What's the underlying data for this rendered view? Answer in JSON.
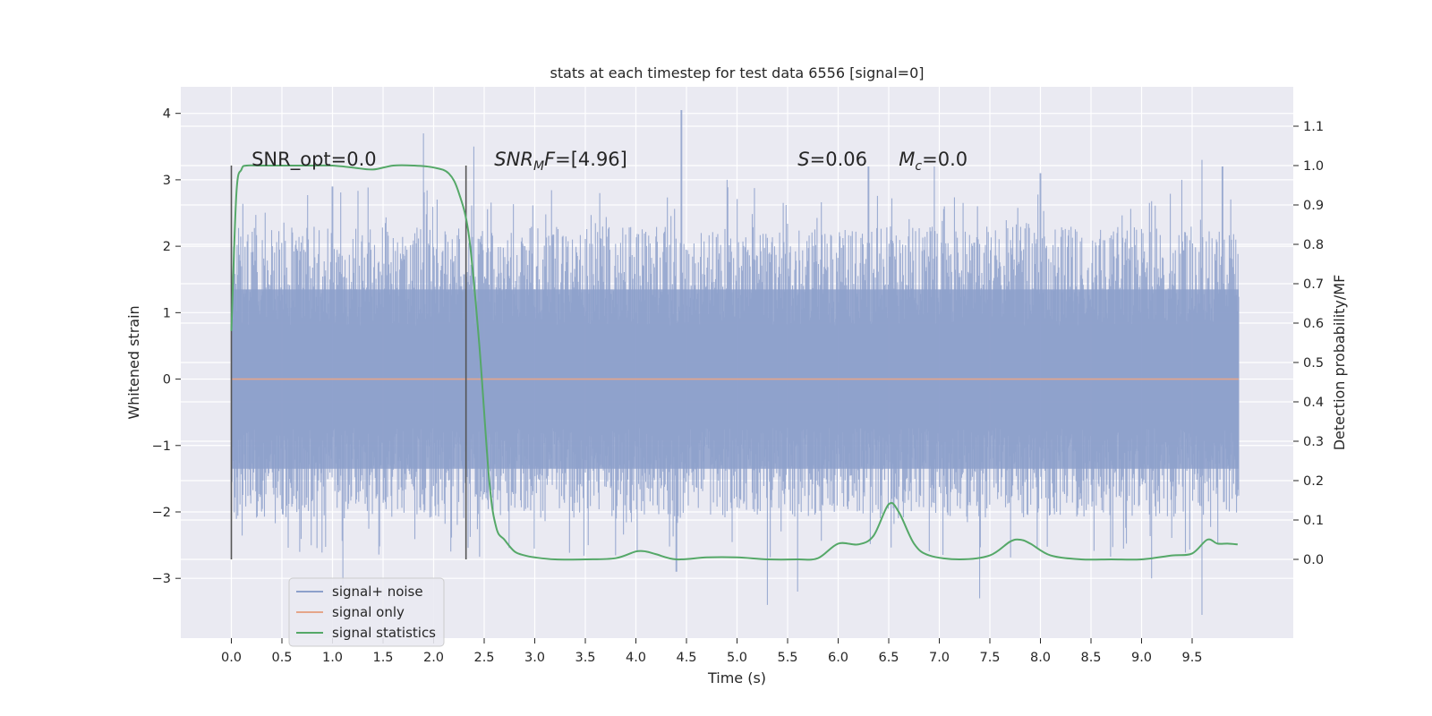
{
  "chart_data": {
    "type": "line",
    "title": "stats at each timestep for test data 6556 [signal=0]",
    "xlabel": "Time (s)",
    "ylabel": "Whitened strain",
    "y2label": "Detection probability/MF",
    "xlim": [
      -0.5,
      10.5
    ],
    "ylim": [
      -3.9,
      4.4
    ],
    "y2lim": [
      -0.2,
      1.2
    ],
    "x_ticks": [
      "0.0",
      "0.5",
      "1.0",
      "1.5",
      "2.0",
      "2.5",
      "3.0",
      "3.5",
      "4.0",
      "4.5",
      "5.0",
      "5.5",
      "6.0",
      "6.5",
      "7.0",
      "7.5",
      "8.0",
      "8.5",
      "9.0",
      "9.5"
    ],
    "y_ticks": [
      "−3",
      "−2",
      "−1",
      "0",
      "1",
      "2",
      "3",
      "4"
    ],
    "y2_ticks": [
      "0.0",
      "0.1",
      "0.2",
      "0.3",
      "0.4",
      "0.5",
      "0.6",
      "0.7",
      "0.8",
      "0.9",
      "1.0",
      "1.1"
    ],
    "grid": true,
    "legend_position": "lower-left",
    "annotations": {
      "snr_opt": "SNR_opt=0.0",
      "snr_mf_base": "SNR",
      "snr_mf_sub": "M",
      "snr_mf_tail": "F",
      "snr_mf_value": "=[4.96]",
      "s_label": "S",
      "s_value": "=0.06",
      "mc_label": "M",
      "mc_sub": "c",
      "mc_value": "=0.0"
    },
    "vertical_lines_x": [
      0.0,
      2.32
    ],
    "series": [
      {
        "name": "signal+ noise",
        "color": "#8da0cb",
        "axis": "left",
        "x_range": [
          0.0,
          9.96
        ],
        "envelope": {
          "upper_typical": 2.3,
          "lower_typical": -2.1,
          "peaks": [
            [
              1.0,
              2.9
            ],
            [
              1.9,
              3.7
            ],
            [
              2.4,
              3.5
            ],
            [
              4.45,
              4.05
            ],
            [
              4.9,
              3.0
            ],
            [
              6.3,
              3.2
            ],
            [
              6.95,
              3.2
            ],
            [
              8.0,
              3.1
            ],
            [
              9.4,
              3.0
            ],
            [
              9.6,
              3.3
            ],
            [
              9.8,
              3.2
            ],
            [
              1.1,
              -3.1
            ],
            [
              4.4,
              -2.9
            ],
            [
              5.3,
              -3.4
            ],
            [
              5.6,
              -3.2
            ],
            [
              7.4,
              -3.3
            ],
            [
              9.6,
              -3.55
            ],
            [
              9.1,
              -3.0
            ]
          ]
        }
      },
      {
        "name": "signal only",
        "color": "#e5a58a",
        "axis": "left",
        "x": [
          0.0,
          9.96
        ],
        "y": [
          0.0,
          0.0
        ]
      },
      {
        "name": "signal statistics",
        "color": "#55a868",
        "axis": "right",
        "x": [
          0.0,
          0.05,
          0.1,
          0.15,
          0.3,
          0.5,
          0.8,
          1.0,
          1.2,
          1.4,
          1.6,
          1.8,
          2.0,
          2.15,
          2.25,
          2.35,
          2.45,
          2.55,
          2.62,
          2.7,
          2.8,
          2.9,
          3.0,
          3.2,
          3.5,
          3.8,
          4.0,
          4.1,
          4.2,
          4.4,
          4.7,
          5.0,
          5.3,
          5.6,
          5.8,
          6.0,
          6.2,
          6.35,
          6.5,
          6.6,
          6.75,
          6.9,
          7.2,
          7.5,
          7.7,
          7.8,
          7.9,
          8.1,
          8.4,
          8.7,
          9.0,
          9.3,
          9.5,
          9.65,
          9.75,
          9.85,
          9.95
        ],
        "y": [
          0.58,
          0.93,
          0.99,
          1.0,
          1.0,
          1.0,
          1.0,
          1.0,
          0.995,
          0.99,
          1.0,
          1.0,
          0.995,
          0.98,
          0.93,
          0.82,
          0.55,
          0.2,
          0.08,
          0.05,
          0.02,
          0.01,
          0.005,
          0.0,
          0.0,
          0.003,
          0.02,
          0.02,
          0.013,
          0.0,
          0.005,
          0.005,
          0.0,
          0.0,
          0.003,
          0.04,
          0.038,
          0.06,
          0.14,
          0.12,
          0.04,
          0.01,
          0.0,
          0.01,
          0.045,
          0.05,
          0.04,
          0.01,
          0.0,
          0.0,
          0.0,
          0.01,
          0.015,
          0.05,
          0.04,
          0.04,
          0.038
        ]
      }
    ]
  }
}
